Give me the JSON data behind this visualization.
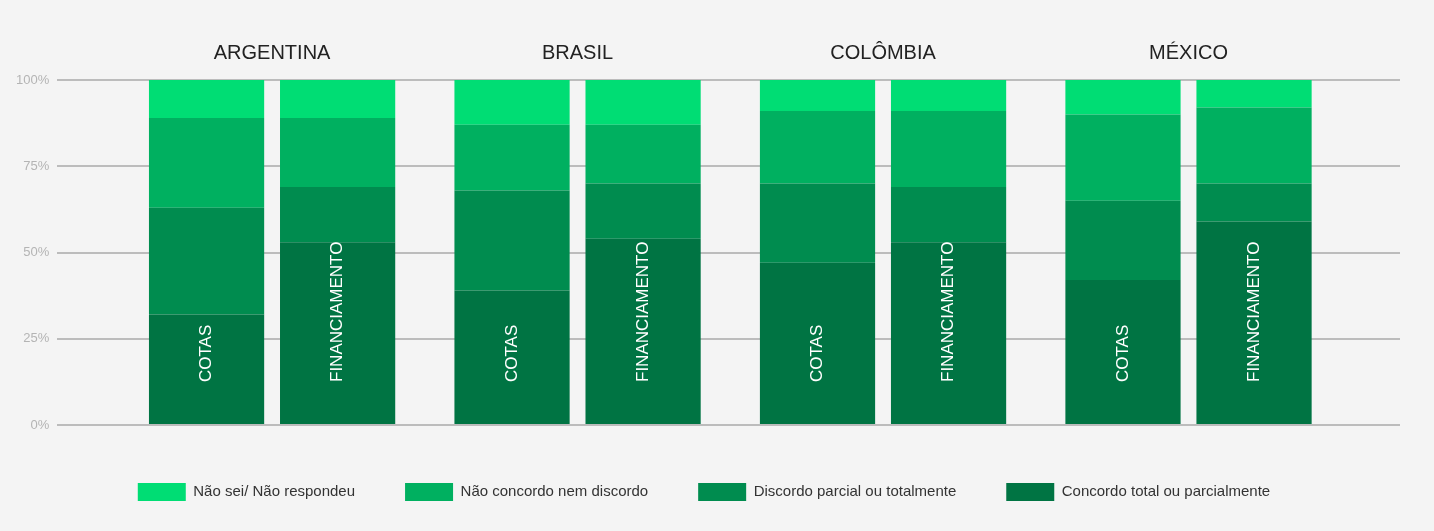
{
  "chart_data": {
    "type": "bar",
    "stacked": true,
    "categories": [
      "COTAS",
      "FINANCIAMENTO",
      "COTAS",
      "FINANCIAMENTO",
      "COTAS",
      "FINANCIAMENTO",
      "COTAS",
      "FINANCIAMENTO"
    ],
    "annotations": [
      "ARGENTINA",
      "BRASIL",
      "COLÔMBIA",
      "MÉXICO"
    ],
    "series": [
      {
        "name": "Concordo total ou parcialmente",
        "color": "#007443",
        "values": [
          32,
          53,
          39,
          54,
          47,
          53,
          42,
          59
        ]
      },
      {
        "name": "Discordo parcial ou totalmente",
        "color": "#008c4f",
        "values": [
          31,
          16,
          29,
          16,
          23,
          16,
          23,
          11
        ]
      },
      {
        "name": "Não concordo nem discordo",
        "color": "#00b060",
        "values": [
          26,
          20,
          19,
          17,
          21,
          22,
          25,
          22
        ]
      },
      {
        "name": "Não sei/ Não respondeu",
        "color": "#00dd74",
        "values": [
          11,
          11,
          13,
          13,
          9,
          9,
          10,
          8
        ]
      }
    ],
    "ylim": [
      0,
      100
    ],
    "yticks": [
      {
        "value": 0,
        "label": "0%"
      },
      {
        "value": 25,
        "label": "25%"
      },
      {
        "value": 50,
        "label": "50%"
      },
      {
        "value": 75,
        "label": "75%"
      },
      {
        "value": 100,
        "label": "100%"
      }
    ],
    "grid": "y",
    "legend": "bottom"
  }
}
